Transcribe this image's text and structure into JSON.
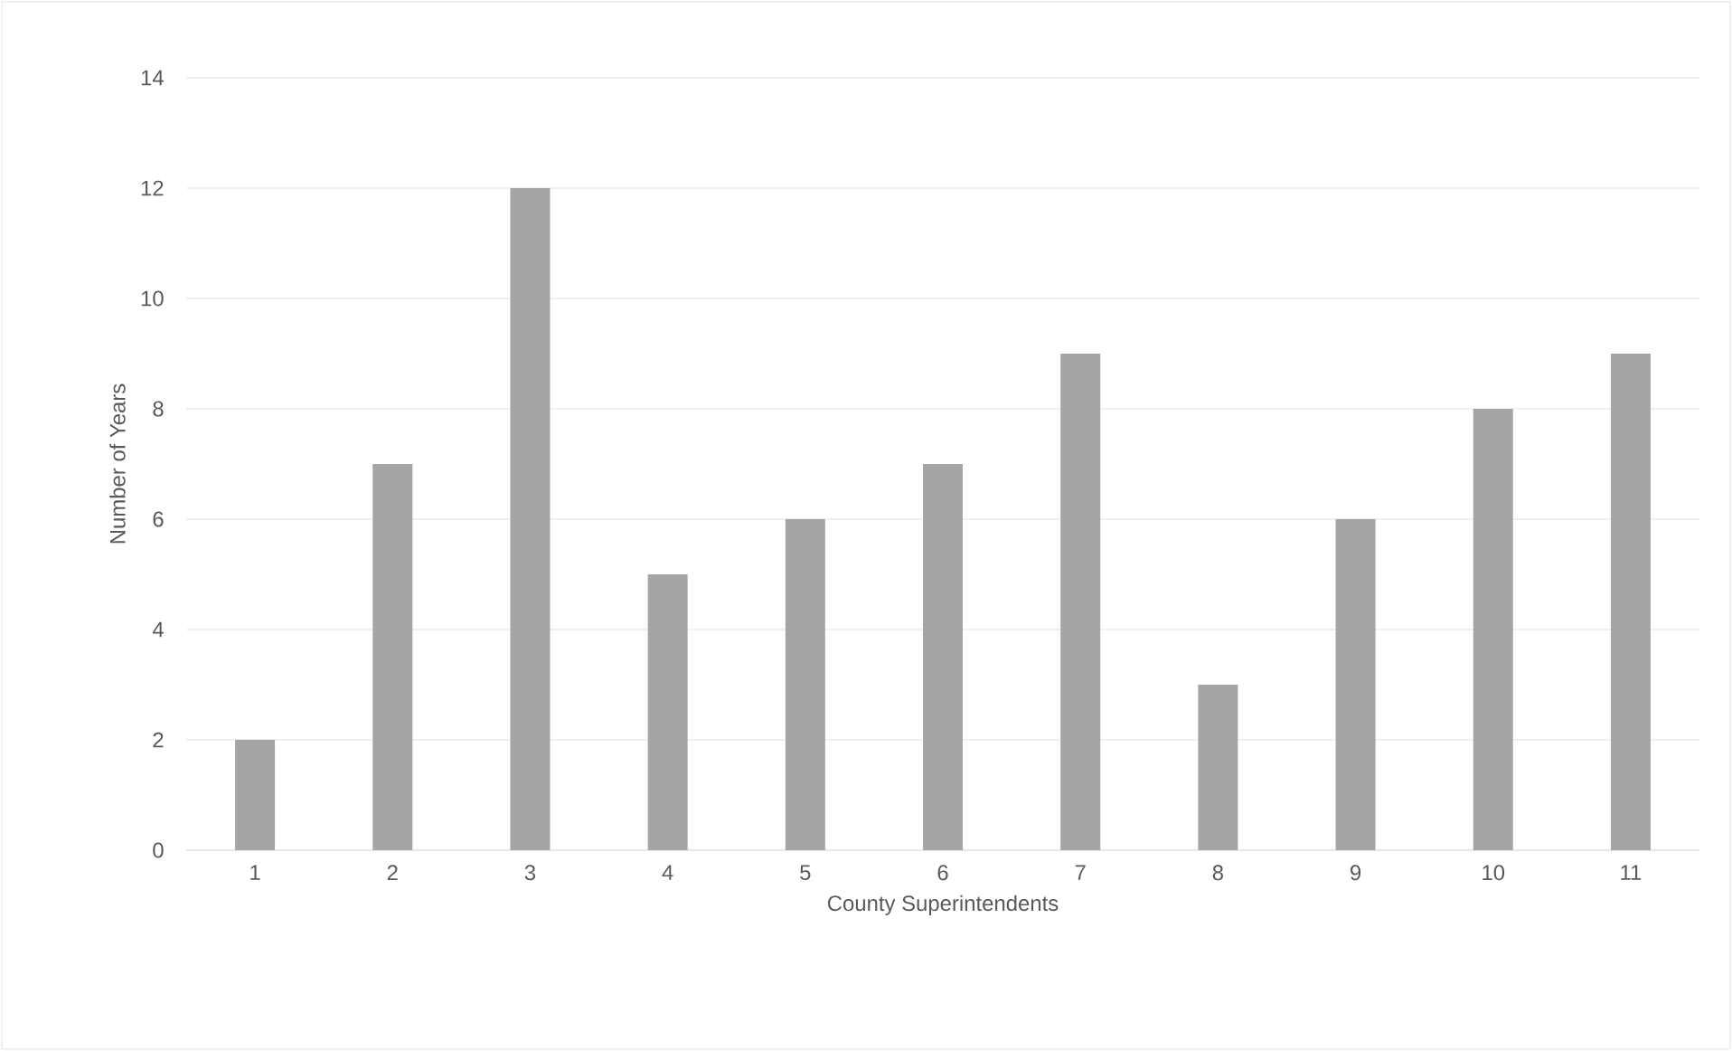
{
  "chart_data": {
    "type": "bar",
    "xlabel": "County Superintendents",
    "ylabel": "Number of Years",
    "categories": [
      "1",
      "2",
      "3",
      "4",
      "5",
      "6",
      "7",
      "8",
      "9",
      "10",
      "11"
    ],
    "values": [
      2,
      7,
      12,
      5,
      6,
      7,
      9,
      3,
      6,
      8,
      9
    ],
    "color": "#a5a5a5",
    "ylim": [
      0,
      14
    ],
    "yticks": [
      0,
      2,
      4,
      6,
      8,
      10,
      12,
      14
    ],
    "grid": "y"
  }
}
